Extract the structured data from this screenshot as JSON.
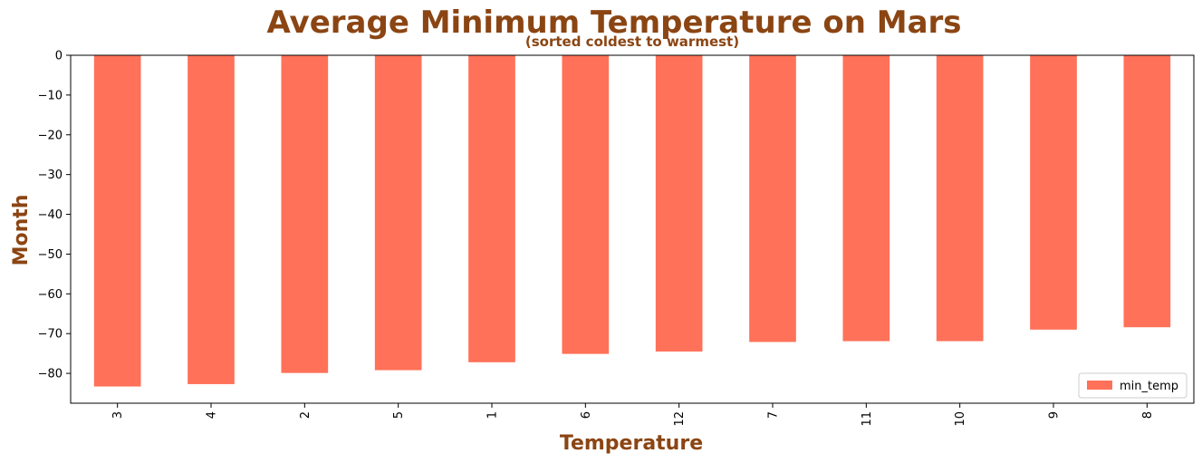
{
  "chart_data": {
    "type": "bar",
    "title": "Average Minimum Temperature on Mars",
    "subtitle": "(sorted coldest to warmest)",
    "xlabel": "Temperature",
    "ylabel": "Month",
    "categories": [
      "3",
      "4",
      "2",
      "5",
      "1",
      "6",
      "12",
      "7",
      "11",
      "10",
      "9",
      "8"
    ],
    "series": [
      {
        "name": "min_temp",
        "values": [
          -83.3,
          -82.7,
          -79.9,
          -79.2,
          -77.2,
          -75.1,
          -74.5,
          -72.1,
          -71.9,
          -71.9,
          -69.0,
          -68.4
        ]
      }
    ],
    "ylim": [
      -87.5,
      0
    ],
    "yticks": [
      0,
      -10,
      -20,
      -30,
      -40,
      -50,
      -60,
      -70,
      -80
    ],
    "ytick_labels": [
      "0",
      "−10",
      "−20",
      "−30",
      "−40",
      "−50",
      "−60",
      "−70",
      "−80"
    ],
    "legend_position": "bottom-right",
    "grid": false,
    "colors": {
      "bar": "#ff7159",
      "title": "#8b4513",
      "axis_label": "#8b4513"
    }
  }
}
